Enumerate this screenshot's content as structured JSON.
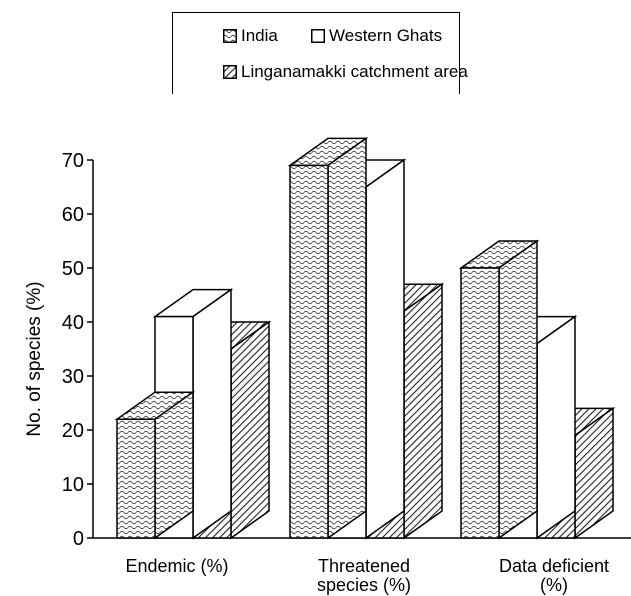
{
  "chart_data": {
    "type": "bar",
    "categories": [
      "Endemic (%)",
      "Threatened species (%)",
      "Data deficient (%)"
    ],
    "category_lines": [
      [
        "Endemic (%)"
      ],
      [
        "Threatened",
        "species (%)"
      ],
      [
        "Data deficient",
        "(%)"
      ]
    ],
    "series": [
      {
        "name": "India",
        "values": [
          22,
          69,
          50
        ],
        "pattern": "wavy"
      },
      {
        "name": "Western Ghats",
        "values": [
          41,
          65,
          36
        ],
        "pattern": "white"
      },
      {
        "name": "Linganamakki catchment area",
        "values": [
          35,
          42,
          19
        ],
        "pattern": "hatch"
      }
    ],
    "ylabel": "No. of species (%)",
    "yticks": [
      0,
      10,
      20,
      30,
      40,
      50,
      60,
      70
    ],
    "ylim": [
      0,
      70
    ],
    "grid": false,
    "legend_position": "top",
    "colors": {
      "fill_white": "#ffffff",
      "stroke": "#000000",
      "pattern_ink": "#333333"
    }
  }
}
